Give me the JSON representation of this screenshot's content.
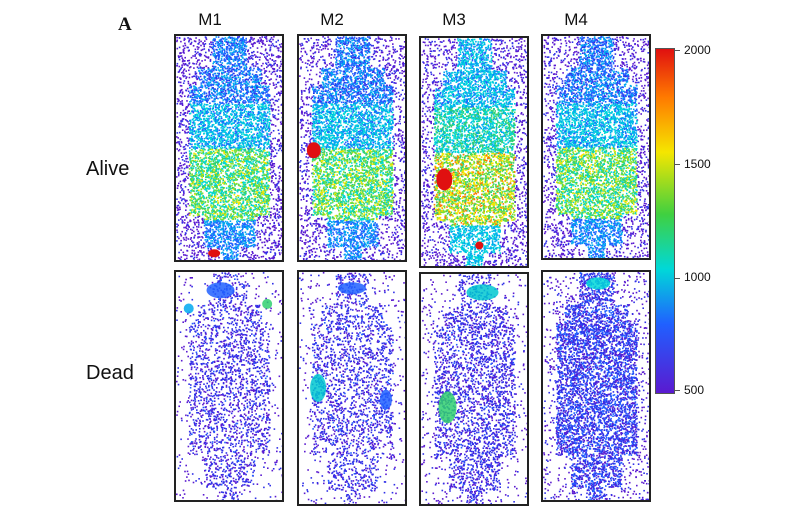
{
  "figure": {
    "panel_letter": "A",
    "columns": [
      "M1",
      "M2",
      "M3",
      "M4"
    ],
    "rows": [
      "Alive",
      "Dead"
    ]
  },
  "colorbar": {
    "ticks": [
      "2000",
      "1500",
      "1000",
      "500"
    ],
    "colors": [
      "#e01010",
      "#ff7a00",
      "#f5e600",
      "#40d040",
      "#00d8d8",
      "#2060ff",
      "#5a1ad0"
    ]
  }
}
